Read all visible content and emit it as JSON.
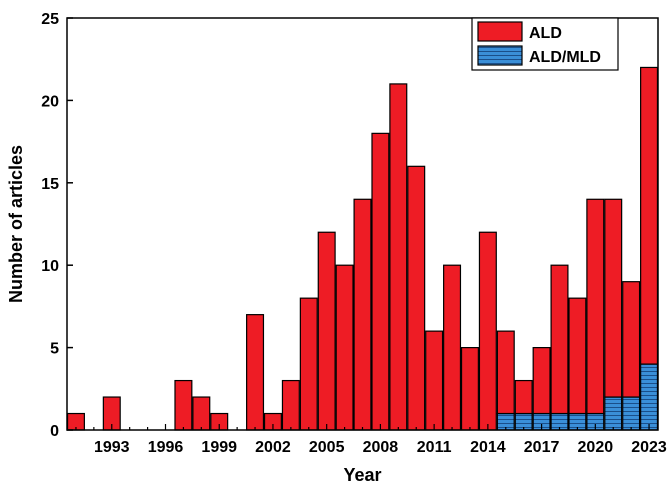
{
  "chart_data": {
    "type": "bar",
    "stacked": true,
    "xlabel": "Year",
    "ylabel": "Number of articles",
    "ylim": [
      0,
      25
    ],
    "yticks": [
      0,
      5,
      10,
      15,
      20,
      25
    ],
    "xticks": [
      1993,
      1996,
      1999,
      2002,
      2005,
      2008,
      2011,
      2014,
      2017,
      2020,
      2023
    ],
    "xlim": [
      1990.5,
      2023.5
    ],
    "legend_position": "top-right",
    "x": [
      1991,
      1992,
      1993,
      1994,
      1995,
      1996,
      1997,
      1998,
      1999,
      2000,
      2001,
      2002,
      2003,
      2004,
      2005,
      2006,
      2007,
      2008,
      2009,
      2010,
      2011,
      2012,
      2013,
      2014,
      2015,
      2016,
      2017,
      2018,
      2019,
      2020,
      2021,
      2022,
      2023
    ],
    "series": [
      {
        "name": "ALD/MLD",
        "color": "#3a8fd8",
        "pattern": "horizontal-hatch",
        "values": [
          0,
          0,
          0,
          0,
          0,
          0,
          0,
          0,
          0,
          0,
          0,
          0,
          0,
          0,
          0,
          0,
          0,
          0,
          0,
          0,
          0,
          0,
          0,
          0,
          1,
          1,
          1,
          1,
          1,
          1,
          2,
          2,
          4
        ]
      },
      {
        "name": "ALD",
        "color": "#ee1c25",
        "values": [
          1,
          0,
          2,
          0,
          0,
          0,
          3,
          2,
          1,
          0,
          7,
          1,
          3,
          8,
          12,
          10,
          14,
          18,
          21,
          16,
          6,
          10,
          5,
          12,
          5,
          2,
          4,
          9,
          7,
          13,
          12,
          7,
          18
        ]
      }
    ]
  }
}
